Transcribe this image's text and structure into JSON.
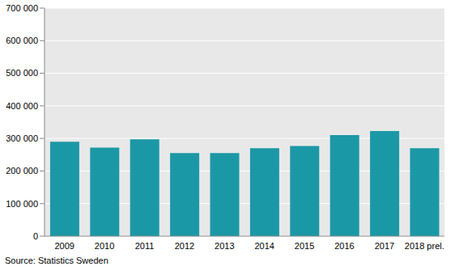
{
  "chart_data": {
    "type": "bar",
    "source": "Source: Statistics Sweden",
    "categories": [
      "2009",
      "2010",
      "2011",
      "2012",
      "2013",
      "2014",
      "2015",
      "2016",
      "2017",
      "2018 prel."
    ],
    "values": [
      290000,
      272000,
      297000,
      255000,
      255000,
      270000,
      277000,
      310000,
      323000,
      270000
    ],
    "color": "#1b98a6",
    "ylim": [
      0,
      700000
    ],
    "yticks": [
      {
        "value": 0,
        "label": "0"
      },
      {
        "value": 100000,
        "label": "100 000"
      },
      {
        "value": 200000,
        "label": "200 000"
      },
      {
        "value": 300000,
        "label": "300 000"
      },
      {
        "value": 400000,
        "label": "400 000"
      },
      {
        "value": 500000,
        "label": "500 000"
      },
      {
        "value": 600000,
        "label": "600 000"
      },
      {
        "value": 700000,
        "label": "700 000"
      }
    ],
    "grid": true
  }
}
